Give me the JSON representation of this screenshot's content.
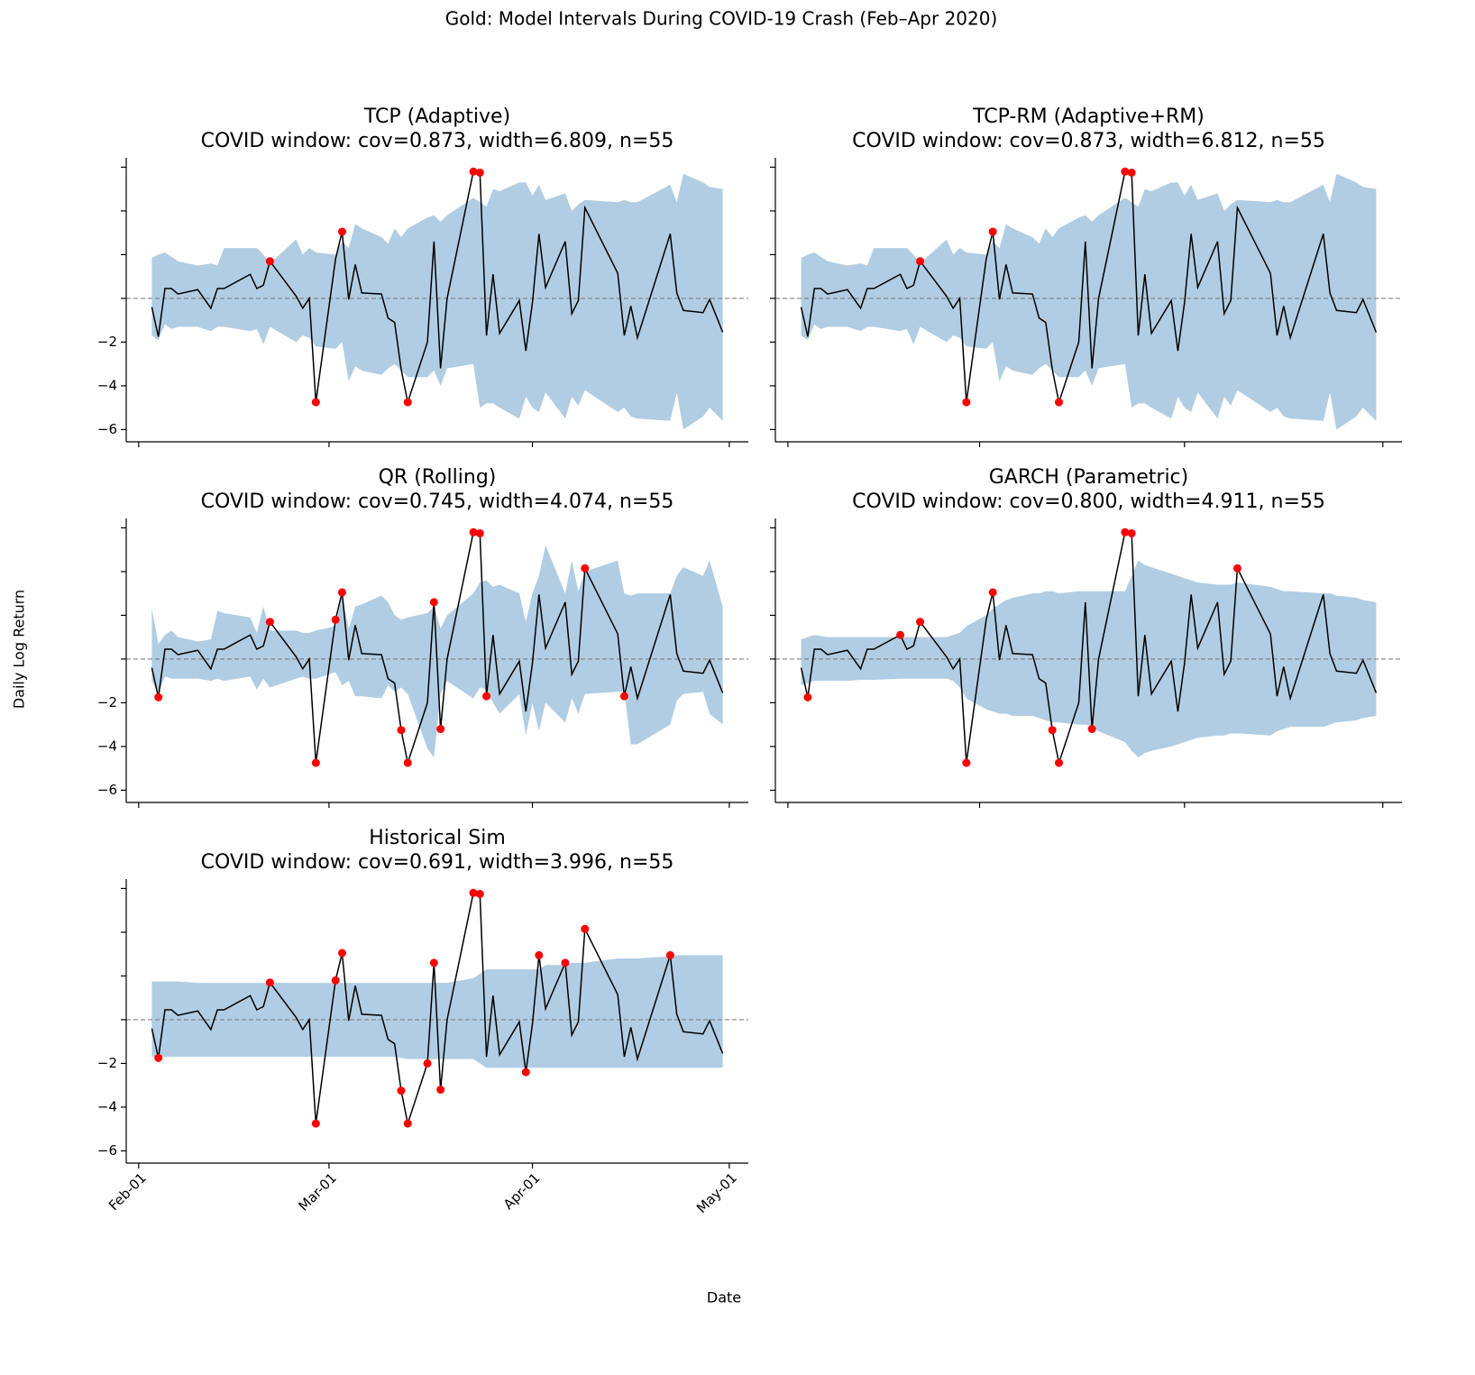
{
  "title": "Gold: Model Intervals During COVID-19 Crash (Feb–Apr 2020)",
  "x_label": "Date",
  "y_label": "Daily Log Return",
  "chart_data": [
    {
      "type": "line",
      "title": "TCP (Adaptive)",
      "subtitle": "COVID window: cov=0.873, width=6.809, n=55",
      "x": [
        2,
        3,
        4,
        5,
        6,
        9,
        11,
        12,
        13,
        17,
        18,
        19,
        20,
        24,
        25,
        26,
        27,
        30,
        31,
        32,
        33,
        34,
        37,
        38,
        39,
        40,
        41,
        44,
        45,
        46,
        47,
        51,
        52,
        53,
        54,
        55,
        58,
        59,
        60,
        61,
        62,
        65,
        66,
        67,
        68,
        73,
        74,
        75,
        76,
        81,
        82,
        83,
        86,
        87,
        89
      ],
      "values": [
        -0.4,
        -1.75,
        0.45,
        0.45,
        0.2,
        0.4,
        -0.45,
        0.45,
        0.45,
        1.1,
        0.45,
        0.6,
        1.7,
        0.1,
        -0.45,
        0.0,
        -4.75,
        1.8,
        3.05,
        -0.05,
        1.55,
        0.25,
        0.2,
        -0.9,
        -1.1,
        -3.25,
        -4.75,
        -2.0,
        2.6,
        -3.2,
        0.0,
        5.8,
        5.75,
        -1.7,
        1.1,
        -1.6,
        -0.1,
        -2.4,
        -0.2,
        2.95,
        0.5,
        2.6,
        -0.7,
        -0.1,
        4.15,
        1.15,
        -1.7,
        -0.35,
        -1.8,
        2.95,
        0.25,
        -0.55,
        -0.65,
        -0.05,
        -1.55
      ],
      "color": "#000000",
      "miss_color": "#ff0000",
      "band": {
        "color": "#b1cde3",
        "upper": [
          1.85,
          2.0,
          2.1,
          1.9,
          1.7,
          1.5,
          1.6,
          1.5,
          2.3,
          2.3,
          2.3,
          2.0,
          1.6,
          2.7,
          2.0,
          2.3,
          2.1,
          2.0,
          2.6,
          2.3,
          3.4,
          3.2,
          2.8,
          2.5,
          3.2,
          2.8,
          3.2,
          3.7,
          3.8,
          3.5,
          3.8,
          4.6,
          4.4,
          4.2,
          5.0,
          4.9,
          5.3,
          5.3,
          4.7,
          5.2,
          4.5,
          4.8,
          4.0,
          4.3,
          4.5,
          4.4,
          4.5,
          4.4,
          4.4,
          5.2,
          4.4,
          5.7,
          5.3,
          5.1,
          5.0
        ],
        "lower": [
          -1.7,
          -1.9,
          -1.2,
          -1.4,
          -1.3,
          -1.3,
          -1.5,
          -1.3,
          -1.3,
          -1.5,
          -1.4,
          -2.1,
          -1.3,
          -2.0,
          -1.7,
          -1.8,
          -2.2,
          -2.3,
          -2.0,
          -3.8,
          -3.1,
          -3.3,
          -3.5,
          -3.2,
          -3.0,
          -3.3,
          -3.6,
          -3.6,
          -3.3,
          -4.0,
          -3.2,
          -3.0,
          -5.0,
          -4.8,
          -4.8,
          -5.0,
          -5.5,
          -4.5,
          -5.0,
          -5.2,
          -4.3,
          -5.5,
          -4.5,
          -4.9,
          -4.2,
          -5.2,
          -5.0,
          -5.4,
          -5.5,
          -5.6,
          -4.3,
          -6.0,
          -5.4,
          -5.0,
          -5.6
        ]
      },
      "reference_line": 0,
      "xlim": [
        -1.9,
        92.9
      ],
      "xticks": [
        0,
        29,
        60,
        90
      ],
      "ylim": [
        -6.56,
        6.43
      ],
      "yticks": [
        {
          "value": -6,
          "label": "−6"
        },
        {
          "value": -4,
          "label": "−4"
        },
        {
          "value": -2,
          "label": "−2"
        },
        0,
        2,
        4,
        6
      ]
    },
    {
      "type": "line",
      "title": "TCP-RM (Adaptive+RM)",
      "subtitle": "COVID window: cov=0.873, width=6.812, n=55",
      "x": [
        2,
        3,
        4,
        5,
        6,
        9,
        11,
        12,
        13,
        17,
        18,
        19,
        20,
        24,
        25,
        26,
        27,
        30,
        31,
        32,
        33,
        34,
        37,
        38,
        39,
        40,
        41,
        44,
        45,
        46,
        47,
        51,
        52,
        53,
        54,
        55,
        58,
        59,
        60,
        61,
        62,
        65,
        66,
        67,
        68,
        73,
        74,
        75,
        76,
        81,
        82,
        83,
        86,
        87,
        89
      ],
      "values": [
        -0.4,
        -1.75,
        0.45,
        0.45,
        0.2,
        0.4,
        -0.45,
        0.45,
        0.45,
        1.1,
        0.45,
        0.6,
        1.7,
        0.1,
        -0.45,
        0.0,
        -4.75,
        1.8,
        3.05,
        -0.05,
        1.55,
        0.25,
        0.2,
        -0.9,
        -1.1,
        -3.25,
        -4.75,
        -2.0,
        2.6,
        -3.2,
        0.0,
        5.8,
        5.75,
        -1.7,
        1.1,
        -1.6,
        -0.1,
        -2.4,
        -0.2,
        2.95,
        0.5,
        2.6,
        -0.7,
        -0.1,
        4.15,
        1.15,
        -1.7,
        -0.35,
        -1.8,
        2.95,
        0.25,
        -0.55,
        -0.65,
        -0.05,
        -1.55
      ],
      "color": "#000000",
      "miss_color": "#ff0000",
      "band": {
        "color": "#b1cde3",
        "upper": [
          1.85,
          2.0,
          2.1,
          1.9,
          1.7,
          1.5,
          1.6,
          1.5,
          2.3,
          2.3,
          2.3,
          2.0,
          1.6,
          2.7,
          2.0,
          2.3,
          2.1,
          2.0,
          2.6,
          2.3,
          3.4,
          3.2,
          2.8,
          2.5,
          3.2,
          2.8,
          3.2,
          3.7,
          3.8,
          3.5,
          3.8,
          4.6,
          4.4,
          4.2,
          5.0,
          4.9,
          5.3,
          5.3,
          4.7,
          5.2,
          4.5,
          4.8,
          4.0,
          4.3,
          4.5,
          4.4,
          4.5,
          4.4,
          4.4,
          5.2,
          4.4,
          5.7,
          5.3,
          5.1,
          5.0
        ],
        "lower": [
          -1.7,
          -1.9,
          -1.2,
          -1.4,
          -1.3,
          -1.3,
          -1.5,
          -1.3,
          -1.3,
          -1.5,
          -1.4,
          -2.1,
          -1.3,
          -2.0,
          -1.7,
          -1.8,
          -2.2,
          -2.3,
          -2.0,
          -3.8,
          -3.1,
          -3.3,
          -3.5,
          -3.2,
          -3.0,
          -3.3,
          -3.6,
          -3.6,
          -3.3,
          -4.0,
          -3.2,
          -3.0,
          -5.0,
          -4.8,
          -4.8,
          -5.0,
          -5.5,
          -4.5,
          -5.0,
          -5.2,
          -4.3,
          -5.5,
          -4.5,
          -4.9,
          -4.2,
          -5.2,
          -5.0,
          -5.4,
          -5.5,
          -5.6,
          -4.3,
          -6.0,
          -5.4,
          -5.0,
          -5.6
        ]
      },
      "reference_line": 0,
      "xlim": [
        -1.9,
        92.9
      ],
      "xticks": [
        0,
        29,
        60,
        90
      ],
      "ylim": [
        -6.56,
        6.43
      ],
      "yticks": [
        -6,
        -4,
        -2,
        0,
        2,
        4,
        6
      ]
    },
    {
      "type": "line",
      "title": "QR (Rolling)",
      "subtitle": "COVID window: cov=0.745, width=4.074, n=55",
      "x": [
        2,
        3,
        4,
        5,
        6,
        9,
        11,
        12,
        13,
        17,
        18,
        19,
        20,
        24,
        25,
        26,
        27,
        30,
        31,
        32,
        33,
        34,
        37,
        38,
        39,
        40,
        41,
        44,
        45,
        46,
        47,
        51,
        52,
        53,
        54,
        55,
        58,
        59,
        60,
        61,
        62,
        65,
        66,
        67,
        68,
        73,
        74,
        75,
        76,
        81,
        82,
        83,
        86,
        87,
        89
      ],
      "values": [
        -0.4,
        -1.75,
        0.45,
        0.45,
        0.2,
        0.4,
        -0.45,
        0.45,
        0.45,
        1.1,
        0.45,
        0.6,
        1.7,
        0.1,
        -0.45,
        0.0,
        -4.75,
        1.8,
        3.05,
        -0.05,
        1.55,
        0.25,
        0.2,
        -0.9,
        -1.1,
        -3.25,
        -4.75,
        -2.0,
        2.6,
        -3.2,
        0.0,
        5.8,
        5.75,
        -1.7,
        1.1,
        -1.6,
        -0.1,
        -2.4,
        -0.2,
        2.95,
        0.5,
        2.6,
        -0.7,
        -0.1,
        4.15,
        1.15,
        -1.7,
        -0.35,
        -1.8,
        2.95,
        0.25,
        -0.55,
        -0.65,
        -0.05,
        -1.55
      ],
      "color": "#000000",
      "miss_color": "#ff0000",
      "band": {
        "color": "#b1cde3",
        "upper": [
          2.3,
          0.7,
          1.1,
          1.3,
          1.0,
          0.8,
          0.9,
          2.2,
          2.1,
          1.9,
          1.2,
          2.4,
          1.3,
          1.3,
          1.2,
          1.2,
          1.3,
          1.5,
          2.9,
          1.4,
          2.4,
          2.5,
          2.9,
          2.6,
          2.0,
          1.8,
          1.9,
          2.1,
          2.4,
          1.4,
          2.0,
          3.0,
          3.5,
          3.6,
          3.3,
          3.4,
          3.0,
          1.7,
          3.0,
          3.8,
          5.2,
          3.0,
          4.5,
          3.1,
          4.0,
          4.5,
          3.0,
          2.9,
          3.0,
          3.0,
          3.8,
          4.2,
          3.8,
          4.5,
          2.4
        ],
        "lower": [
          -1.0,
          -1.6,
          -0.8,
          -0.9,
          -0.9,
          -0.9,
          -1.0,
          -0.9,
          -1.0,
          -0.8,
          -1.4,
          -0.9,
          -1.3,
          -0.9,
          -0.8,
          -0.9,
          -0.9,
          -0.6,
          -1.2,
          -1.0,
          -1.7,
          -1.7,
          -1.8,
          -1.2,
          -1.5,
          -1.3,
          -1.6,
          -4.1,
          -4.5,
          -1.6,
          -1.0,
          -1.8,
          -1.3,
          -1.4,
          -2.0,
          -2.5,
          -1.6,
          -3.5,
          -2.0,
          -3.3,
          -2.0,
          -2.9,
          -1.8,
          -2.5,
          -1.6,
          -1.5,
          -1.5,
          -3.9,
          -3.9,
          -3.0,
          -1.9,
          -1.6,
          -1.5,
          -2.5,
          -3.0
        ]
      },
      "reference_line": 0,
      "xlim": [
        -1.9,
        92.9
      ],
      "xticks": [
        0,
        29,
        60,
        90
      ],
      "ylim": [
        -6.56,
        6.43
      ],
      "yticks": [
        {
          "value": -6,
          "label": "−6"
        },
        {
          "value": -4,
          "label": "−4"
        },
        {
          "value": -2,
          "label": "−2"
        },
        0,
        2,
        4,
        6
      ]
    },
    {
      "type": "line",
      "title": "GARCH (Parametric)",
      "subtitle": "COVID window: cov=0.800, width=4.911, n=55",
      "x": [
        2,
        3,
        4,
        5,
        6,
        9,
        11,
        12,
        13,
        17,
        18,
        19,
        20,
        24,
        25,
        26,
        27,
        30,
        31,
        32,
        33,
        34,
        37,
        38,
        39,
        40,
        41,
        44,
        45,
        46,
        47,
        51,
        52,
        53,
        54,
        55,
        58,
        59,
        60,
        61,
        62,
        65,
        66,
        67,
        68,
        73,
        74,
        75,
        76,
        81,
        82,
        83,
        86,
        87,
        89
      ],
      "values": [
        -0.4,
        -1.75,
        0.45,
        0.45,
        0.2,
        0.4,
        -0.45,
        0.45,
        0.45,
        1.1,
        0.45,
        0.6,
        1.7,
        0.1,
        -0.45,
        0.0,
        -4.75,
        1.8,
        3.05,
        -0.05,
        1.55,
        0.25,
        0.2,
        -0.9,
        -1.1,
        -3.25,
        -4.75,
        -2.0,
        2.6,
        -3.2,
        0.0,
        5.8,
        5.75,
        -1.7,
        1.1,
        -1.6,
        -0.1,
        -2.4,
        -0.2,
        2.95,
        0.5,
        2.6,
        -0.7,
        -0.1,
        4.15,
        1.15,
        -1.7,
        -0.35,
        -1.8,
        2.95,
        0.25,
        -0.55,
        -0.65,
        -0.05,
        -1.55
      ],
      "color": "#000000",
      "miss_color": "#ff0000",
      "band": {
        "color": "#b1cde3",
        "upper": [
          0.9,
          1.0,
          1.1,
          1.05,
          1.0,
          1.0,
          1.0,
          1.0,
          1.0,
          1.0,
          1.0,
          1.0,
          1.0,
          1.0,
          1.1,
          1.2,
          1.5,
          2.0,
          2.3,
          2.5,
          2.7,
          2.8,
          3.0,
          3.0,
          3.1,
          3.1,
          3.0,
          3.1,
          3.1,
          3.1,
          3.1,
          3.1,
          3.8,
          4.5,
          4.3,
          4.2,
          3.9,
          3.8,
          3.7,
          3.6,
          3.5,
          3.4,
          3.4,
          3.4,
          3.5,
          3.3,
          3.2,
          3.1,
          3.1,
          3.0,
          3.0,
          2.9,
          2.8,
          2.7,
          2.6
        ],
        "lower": [
          -1.2,
          -1.1,
          -1.0,
          -1.0,
          -1.0,
          -1.0,
          -0.95,
          -0.95,
          -0.95,
          -0.9,
          -0.9,
          -0.9,
          -0.9,
          -0.9,
          -1.0,
          -1.3,
          -1.8,
          -2.3,
          -2.4,
          -2.5,
          -2.5,
          -2.6,
          -2.6,
          -2.7,
          -2.8,
          -2.9,
          -2.9,
          -3.0,
          -3.0,
          -3.1,
          -3.3,
          -3.8,
          -4.2,
          -4.5,
          -4.3,
          -4.2,
          -4.0,
          -3.9,
          -3.8,
          -3.7,
          -3.6,
          -3.5,
          -3.5,
          -3.4,
          -3.4,
          -3.5,
          -3.3,
          -3.2,
          -3.1,
          -3.1,
          -3.0,
          -2.9,
          -2.8,
          -2.7,
          -2.6
        ]
      },
      "reference_line": 0,
      "xlim": [
        -1.9,
        92.9
      ],
      "xticks": [
        0,
        29,
        60,
        90
      ],
      "ylim": [
        -6.56,
        6.43
      ],
      "yticks": [
        -6,
        -4,
        -2,
        0,
        2,
        4,
        6
      ]
    },
    {
      "type": "line",
      "title": "Historical Sim",
      "subtitle": "COVID window: cov=0.691, width=3.996, n=55",
      "x": [
        2,
        3,
        4,
        5,
        6,
        9,
        11,
        12,
        13,
        17,
        18,
        19,
        20,
        24,
        25,
        26,
        27,
        30,
        31,
        32,
        33,
        34,
        37,
        38,
        39,
        40,
        41,
        44,
        45,
        46,
        47,
        51,
        52,
        53,
        54,
        55,
        58,
        59,
        60,
        61,
        62,
        65,
        66,
        67,
        68,
        73,
        74,
        75,
        76,
        81,
        82,
        83,
        86,
        87,
        89
      ],
      "values": [
        -0.4,
        -1.75,
        0.45,
        0.45,
        0.2,
        0.4,
        -0.45,
        0.45,
        0.45,
        1.1,
        0.45,
        0.6,
        1.7,
        0.1,
        -0.45,
        0.0,
        -4.75,
        1.8,
        3.05,
        -0.05,
        1.55,
        0.25,
        0.2,
        -0.9,
        -1.1,
        -3.25,
        -4.75,
        -2.0,
        2.6,
        -3.2,
        0.0,
        5.8,
        5.75,
        -1.7,
        1.1,
        -1.6,
        -0.1,
        -2.4,
        -0.2,
        2.95,
        0.5,
        2.6,
        -0.7,
        -0.1,
        4.15,
        1.15,
        -1.7,
        -0.35,
        -1.8,
        2.95,
        0.25,
        -0.55,
        -0.65,
        -0.05,
        -1.55
      ],
      "color": "#000000",
      "miss_color": "#ff0000",
      "band": {
        "color": "#b1cde3",
        "upper": [
          1.75,
          1.75,
          1.75,
          1.75,
          1.75,
          1.68,
          1.68,
          1.68,
          1.68,
          1.68,
          1.68,
          1.68,
          1.68,
          1.68,
          1.68,
          1.68,
          1.68,
          1.68,
          1.68,
          1.68,
          1.68,
          1.68,
          1.68,
          1.68,
          1.68,
          1.68,
          1.68,
          1.68,
          1.68,
          1.68,
          1.68,
          1.9,
          2.1,
          2.3,
          2.3,
          2.3,
          2.3,
          2.3,
          2.3,
          2.3,
          2.5,
          2.5,
          2.6,
          2.6,
          2.6,
          2.8,
          2.8,
          2.8,
          2.8,
          2.9,
          2.95,
          2.95,
          2.95,
          2.95,
          2.95
        ],
        "lower": [
          -1.7,
          -1.7,
          -1.7,
          -1.7,
          -1.7,
          -1.7,
          -1.7,
          -1.7,
          -1.7,
          -1.7,
          -1.7,
          -1.7,
          -1.7,
          -1.7,
          -1.7,
          -1.7,
          -1.7,
          -1.7,
          -1.7,
          -1.7,
          -1.7,
          -1.7,
          -1.7,
          -1.7,
          -1.7,
          -1.75,
          -1.8,
          -1.8,
          -1.8,
          -1.8,
          -1.8,
          -1.8,
          -2.0,
          -2.2,
          -2.2,
          -2.2,
          -2.2,
          -2.2,
          -2.2,
          -2.2,
          -2.2,
          -2.2,
          -2.2,
          -2.2,
          -2.2,
          -2.2,
          -2.2,
          -2.2,
          -2.2,
          -2.2,
          -2.2,
          -2.2,
          -2.2,
          -2.2,
          -2.2
        ]
      },
      "reference_line": 0,
      "xlim": [
        -1.9,
        92.9
      ],
      "xticks": [
        {
          "value": 0,
          "label": "Feb-01"
        },
        {
          "value": 29,
          "label": "Mar-01"
        },
        {
          "value": 60,
          "label": "Apr-01"
        },
        {
          "value": 90,
          "label": "May-01"
        }
      ],
      "ylim": [
        -6.56,
        6.43
      ],
      "yticks": [
        {
          "value": -6,
          "label": "−6"
        },
        {
          "value": -4,
          "label": "−4"
        },
        {
          "value": -2,
          "label": "−2"
        },
        0,
        2,
        4,
        6
      ]
    }
  ]
}
